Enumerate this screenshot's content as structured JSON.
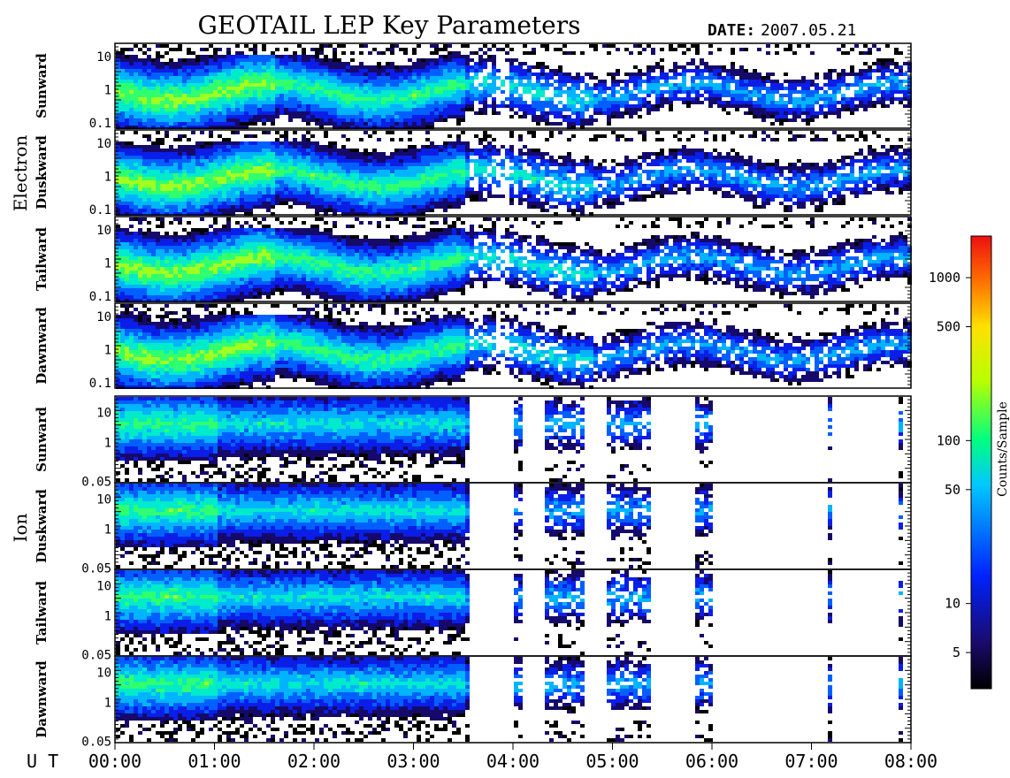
{
  "chart_data": {
    "type": "heatmap",
    "title": "GEOTAIL LEP Key Parameters",
    "date_label": "DATE:",
    "date_value": "2007.05.21",
    "xaxis": {
      "label": "U T",
      "range": [
        "00:00",
        "08:00"
      ],
      "ticks": [
        "00:00",
        "01:00",
        "02:00",
        "03:00",
        "04:00",
        "05:00",
        "06:00",
        "07:00",
        "08:00"
      ]
    },
    "colorbar": {
      "label": "Counts/Sample",
      "scale": "log",
      "range": [
        3,
        1800
      ],
      "ticks": [
        "5",
        "10",
        "50",
        "100",
        "500",
        "1000"
      ],
      "tick_values": [
        5,
        10,
        50,
        100,
        500,
        1000
      ]
    },
    "groups": [
      {
        "name": "Electron",
        "panels": [
          {
            "label": "Sunward",
            "yscale": "log",
            "yticks": [
              "10",
              "1",
              "0.1"
            ],
            "ytick_values": [
              10,
              1,
              0.1
            ],
            "yrange": [
              0.07,
              25
            ]
          },
          {
            "label": "Duskward",
            "yscale": "log",
            "yticks": [
              "10",
              "1",
              "0.1"
            ],
            "ytick_values": [
              10,
              1,
              0.1
            ],
            "yrange": [
              0.07,
              25
            ]
          },
          {
            "label": "Tailward",
            "yscale": "log",
            "yticks": [
              "10",
              "1",
              "0.1"
            ],
            "ytick_values": [
              10,
              1,
              0.1
            ],
            "yrange": [
              0.07,
              25
            ]
          },
          {
            "label": "Dawnward",
            "yscale": "log",
            "yticks": [
              "10",
              "1",
              "0.1"
            ],
            "ytick_values": [
              10,
              1,
              0.1
            ],
            "yrange": [
              0.07,
              25
            ]
          }
        ]
      },
      {
        "name": "Ion",
        "panels": [
          {
            "label": "Sunward",
            "yscale": "log",
            "yticks": [
              "10",
              "1",
              "0.05"
            ],
            "ytick_values": [
              10,
              1,
              0.05
            ],
            "yrange": [
              0.045,
              35
            ]
          },
          {
            "label": "Duskward",
            "yscale": "log",
            "yticks": [
              "10",
              "1",
              "0.05"
            ],
            "ytick_values": [
              10,
              1,
              0.05
            ],
            "yrange": [
              0.045,
              35
            ]
          },
          {
            "label": "Tailward",
            "yscale": "log",
            "yticks": [
              "10",
              "1",
              "0.05"
            ],
            "ytick_values": [
              10,
              1,
              0.05
            ],
            "yrange": [
              0.045,
              35
            ]
          },
          {
            "label": "Dawnward",
            "yscale": "log",
            "yticks": [
              "10",
              "1",
              "0.05"
            ],
            "ytick_values": [
              10,
              1,
              0.05
            ],
            "yrange": [
              0.045,
              35
            ]
          }
        ]
      }
    ]
  }
}
